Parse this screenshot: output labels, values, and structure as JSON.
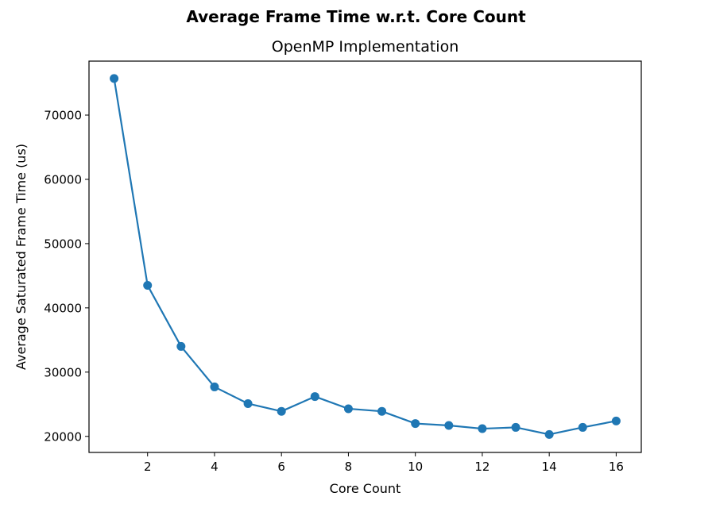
{
  "chart_data": {
    "type": "line",
    "suptitle": "Average Frame Time w.r.t. Core Count",
    "title": "OpenMP Implementation",
    "xlabel": "Core Count",
    "ylabel": "Average Saturated Frame Time (us)",
    "xlim": [
      0.25,
      16.75
    ],
    "ylim": [
      17500,
      78400
    ],
    "grid": false,
    "x_ticks": [
      {
        "value": 2,
        "label": "2"
      },
      {
        "value": 4,
        "label": "4"
      },
      {
        "value": 6,
        "label": "6"
      },
      {
        "value": 8,
        "label": "8"
      },
      {
        "value": 10,
        "label": "10"
      },
      {
        "value": 12,
        "label": "12"
      },
      {
        "value": 14,
        "label": "14"
      },
      {
        "value": 16,
        "label": "16"
      }
    ],
    "y_ticks": [
      {
        "value": 20000,
        "label": "20000"
      },
      {
        "value": 30000,
        "label": "30000"
      },
      {
        "value": 40000,
        "label": "40000"
      },
      {
        "value": 50000,
        "label": "50000"
      },
      {
        "value": 60000,
        "label": "60000"
      },
      {
        "value": 70000,
        "label": "70000"
      }
    ],
    "series": [
      {
        "name": "OpenMP",
        "color": "#1f77b4",
        "marker": "circle",
        "x": [
          1,
          2,
          3,
          4,
          5,
          6,
          7,
          8,
          9,
          10,
          11,
          12,
          13,
          14,
          15,
          16
        ],
        "values": [
          75700,
          43500,
          34000,
          27700,
          25100,
          23900,
          26200,
          24300,
          23900,
          22000,
          21700,
          21200,
          21400,
          20300,
          21400,
          22400
        ]
      }
    ]
  }
}
